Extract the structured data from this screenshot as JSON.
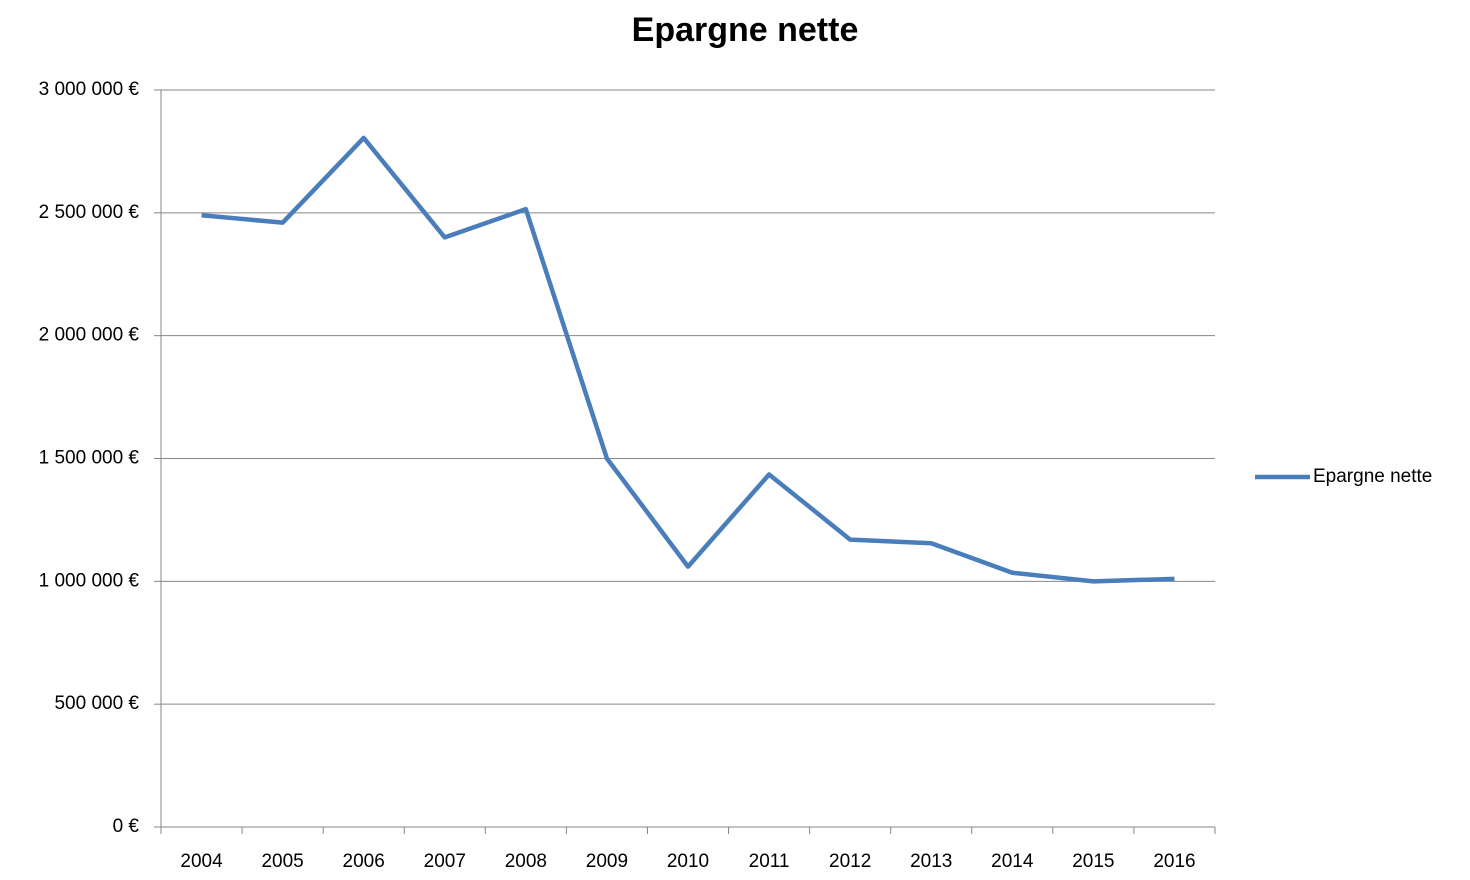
{
  "chart_data": {
    "type": "line",
    "title": "Epargne nette",
    "categories": [
      "2004",
      "2005",
      "2006",
      "2007",
      "2008",
      "2009",
      "2010",
      "2011",
      "2012",
      "2013",
      "2014",
      "2015",
      "2016"
    ],
    "series": [
      {
        "name": "Epargne nette",
        "color": "#4a7ebb",
        "values": [
          2490000,
          2460000,
          2805000,
          2400000,
          2515000,
          1500000,
          1060000,
          1435000,
          1170000,
          1155000,
          1035000,
          1000000,
          1010000
        ]
      }
    ],
    "ylim": [
      0,
      3000000
    ],
    "yticks": [
      {
        "value": 0,
        "label": "0 €"
      },
      {
        "value": 500000,
        "label": "500 000 €"
      },
      {
        "value": 1000000,
        "label": "1 000 000 €"
      },
      {
        "value": 1500000,
        "label": "1 500 000 €"
      },
      {
        "value": 2000000,
        "label": "2 000 000 €"
      },
      {
        "value": 2500000,
        "label": "2 500 000 €"
      },
      {
        "value": 3000000,
        "label": "3 000 000 €"
      }
    ],
    "grid": true,
    "legend": "right"
  }
}
